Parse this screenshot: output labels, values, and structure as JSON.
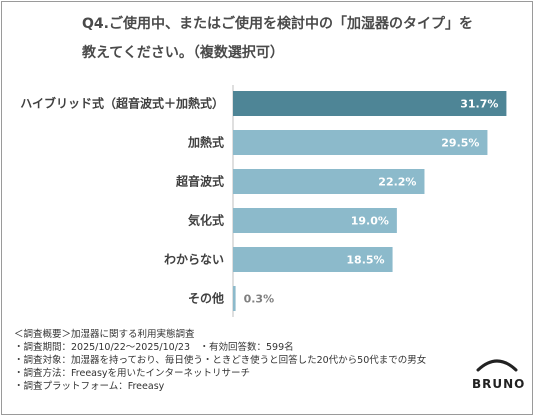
{
  "title": {
    "line1": "Q4.ご使用中、またはご使用を検討中の「加湿器のタイプ」を",
    "line2": "教えてください。（複数選択可）"
  },
  "chart_data": {
    "type": "bar",
    "orientation": "horizontal",
    "categories": [
      "ハイブリッド式（超音波式＋加熱式）",
      "加熱式",
      "超音波式",
      "気化式",
      "わからない",
      "その他"
    ],
    "values": [
      31.7,
      29.5,
      22.2,
      19.0,
      18.5,
      0.3
    ],
    "value_labels": [
      "31.7%",
      "29.5%",
      "22.2%",
      "19.0%",
      "18.5%",
      "0.3%"
    ],
    "colors": [
      "#4e8596",
      "#8cbacb",
      "#8cbacb",
      "#8cbacb",
      "#8cbacb",
      "#8cbacb"
    ],
    "xlim": [
      0,
      40
    ],
    "grid": false
  },
  "notes": [
    "＜調査概要＞加湿器に関する利用実態調査",
    "・調査期間：2025/10/22～2025/10/23　・有効回答数：599名",
    "・調査対象：加湿器を持っており、毎日使う・ときどき使うと回答した20代から50代までの男女",
    "・調査方法：Freeasyを用いたインターネットリサーチ",
    "・調査プラットフォーム：Freeasy"
  ],
  "logo": {
    "text": "BRUNO"
  }
}
